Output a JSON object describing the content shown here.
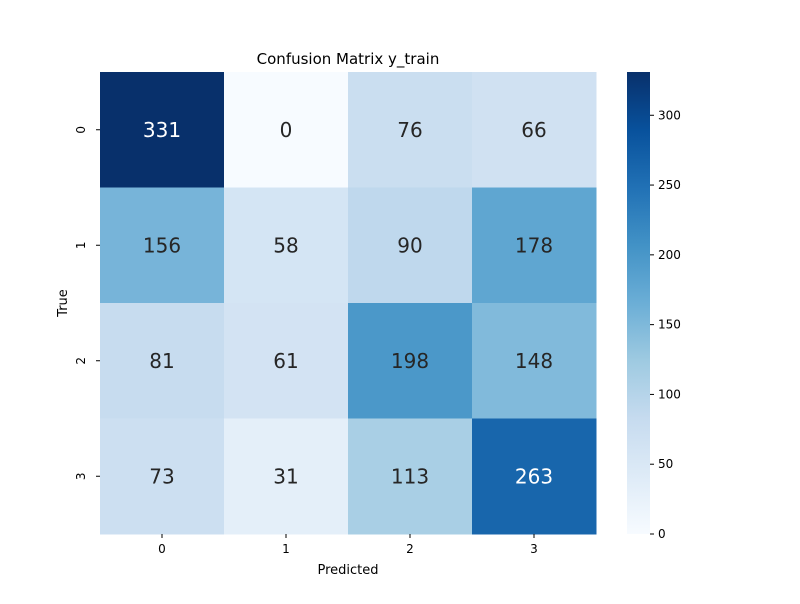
{
  "chart_data": {
    "type": "heatmap",
    "title": "Confusion Matrix y_train",
    "xlabel": "Predicted",
    "ylabel": "True",
    "x_categories": [
      "0",
      "1",
      "2",
      "3"
    ],
    "y_categories": [
      "0",
      "1",
      "2",
      "3"
    ],
    "values": [
      [
        331,
        0,
        76,
        66
      ],
      [
        156,
        58,
        90,
        178
      ],
      [
        81,
        61,
        198,
        148
      ],
      [
        73,
        31,
        113,
        263
      ]
    ],
    "colormap": "Blues",
    "colorbar": {
      "range": [
        0,
        331
      ],
      "ticks": [
        0,
        50,
        100,
        150,
        200,
        250,
        300
      ]
    },
    "grid": false,
    "legend": "colorbar-right"
  }
}
